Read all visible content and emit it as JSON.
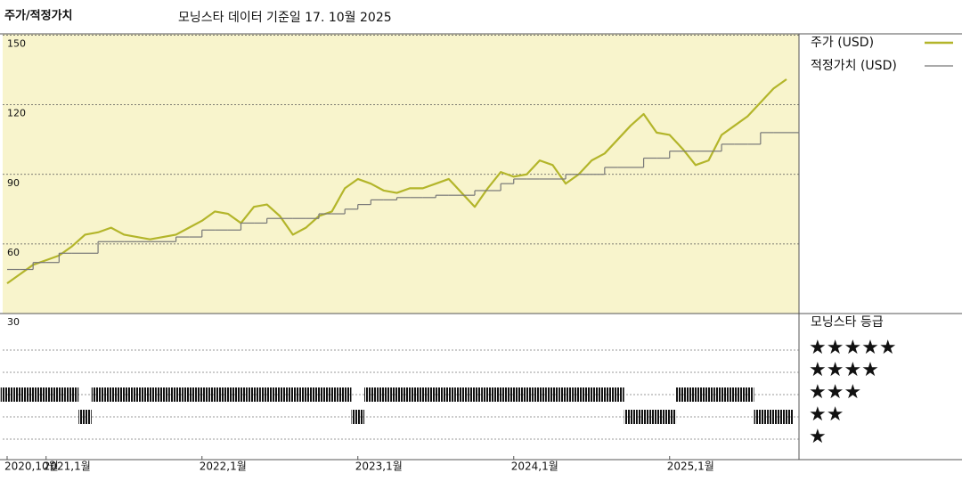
{
  "chart_data": {
    "type": "line",
    "title": "주가/적정가치",
    "subtitle": "모닝스타 데이터 기준일 17. 10월 2025",
    "x": [
      "2020-10",
      "2020-11",
      "2020-12",
      "2021-01",
      "2021-02",
      "2021-03",
      "2021-04",
      "2021-05",
      "2021-06",
      "2021-07",
      "2021-08",
      "2021-09",
      "2021-10",
      "2021-11",
      "2021-12",
      "2022-01",
      "2022-02",
      "2022-03",
      "2022-04",
      "2022-05",
      "2022-06",
      "2022-07",
      "2022-08",
      "2022-09",
      "2022-10",
      "2022-11",
      "2022-12",
      "2023-01",
      "2023-02",
      "2023-03",
      "2023-04",
      "2023-05",
      "2023-06",
      "2023-07",
      "2023-08",
      "2023-09",
      "2023-10",
      "2023-11",
      "2023-12",
      "2024-01",
      "2024-02",
      "2024-03",
      "2024-04",
      "2024-05",
      "2024-06",
      "2024-07",
      "2024-08",
      "2024-09",
      "2024-10",
      "2024-11",
      "2024-12",
      "2025-01",
      "2025-02",
      "2025-03",
      "2025-04",
      "2025-05",
      "2025-06",
      "2025-07",
      "2025-08",
      "2025-09",
      "2025-10"
    ],
    "series": [
      {
        "name": "주가 (USD)",
        "color": "#b3b52a",
        "values": [
          43,
          47,
          51,
          53,
          55,
          59,
          64,
          65,
          67,
          64,
          63,
          62,
          63,
          64,
          67,
          70,
          74,
          73,
          69,
          76,
          77,
          72,
          64,
          67,
          72,
          74,
          84,
          88,
          86,
          83,
          82,
          84,
          84,
          86,
          88,
          82,
          76,
          84,
          91,
          89,
          90,
          96,
          94,
          86,
          90,
          96,
          99,
          105,
          111,
          116,
          108,
          107,
          101,
          94,
          96,
          107,
          111,
          115,
          121,
          127,
          131
        ]
      },
      {
        "name": "적정가치 (USD)",
        "color": "#777777",
        "step": true,
        "values": [
          49,
          49,
          52,
          52,
          56,
          56,
          56,
          61,
          61,
          61,
          61,
          61,
          61,
          63,
          63,
          66,
          66,
          66,
          69,
          69,
          71,
          71,
          71,
          71,
          73,
          73,
          75,
          77,
          79,
          79,
          80,
          80,
          80,
          81,
          81,
          81,
          83,
          83,
          86,
          88,
          88,
          88,
          88,
          90,
          90,
          90,
          93,
          93,
          93,
          97,
          97,
          100,
          100,
          100,
          100,
          103,
          103,
          103,
          108,
          108,
          108
        ]
      }
    ],
    "ylim": [
      30,
      150
    ],
    "yticks": [
      30,
      60,
      90,
      120,
      150
    ],
    "xticks": [
      {
        "value": "2020-10",
        "label": "2020,10월"
      },
      {
        "value": "2021-01",
        "label": "2021,1월"
      },
      {
        "value": "2022-01",
        "label": "2022,1월"
      },
      {
        "value": "2023-01",
        "label": "2023,1월"
      },
      {
        "value": "2024-01",
        "label": "2024,1월"
      },
      {
        "value": "2025-01",
        "label": "2025,1월"
      }
    ],
    "grid": true,
    "rating": {
      "title": "모닝스타 등급",
      "levels": [
        {
          "value": 5,
          "label": "★★★★★"
        },
        {
          "value": 4,
          "label": "★★★★"
        },
        {
          "value": 3,
          "label": "★★★"
        },
        {
          "value": 2,
          "label": "★★"
        },
        {
          "value": 1,
          "label": "★"
        }
      ],
      "values": [
        3,
        3,
        3,
        3,
        3,
        3,
        2,
        3,
        3,
        3,
        3,
        3,
        3,
        3,
        3,
        3,
        3,
        3,
        3,
        3,
        3,
        3,
        3,
        3,
        3,
        3,
        3,
        2,
        3,
        3,
        3,
        3,
        3,
        3,
        3,
        3,
        3,
        3,
        3,
        3,
        3,
        3,
        3,
        3,
        3,
        3,
        3,
        3,
        2,
        2,
        2,
        2,
        3,
        3,
        3,
        3,
        3,
        3,
        2,
        2,
        2
      ]
    }
  }
}
